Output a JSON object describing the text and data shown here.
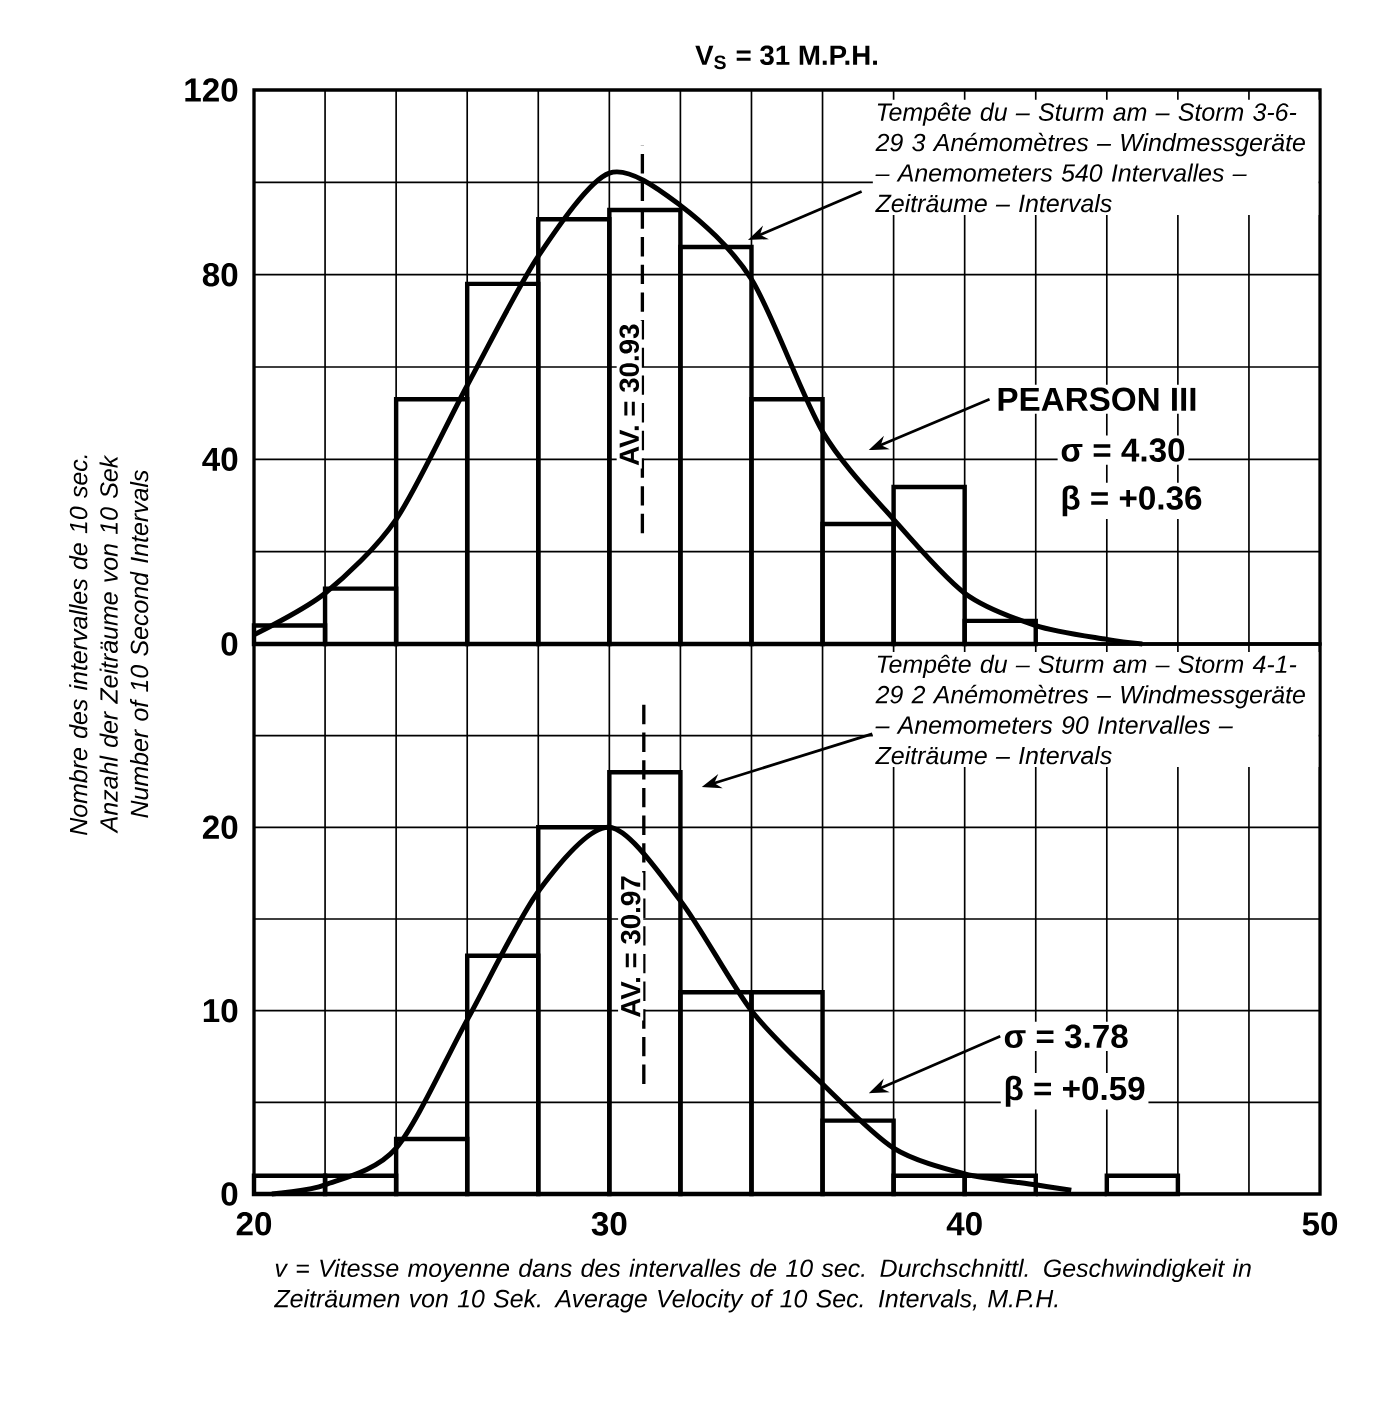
{
  "chart_data": [
    {
      "type": "histogram",
      "title": "V$_{S}$ = 31 M.P.H.",
      "ylabel": "Nombre des intervalles de 10 sec. Anzahl der Zeiträume von 10 Sek Number of 10 Second Intervals",
      "bins": [
        20,
        22,
        24,
        26,
        28,
        30,
        32,
        34,
        36,
        38,
        40,
        42
      ],
      "values": [
        4,
        12,
        53,
        78,
        92,
        94,
        86,
        53,
        26,
        34,
        5
      ],
      "color": "#000000",
      "series": [
        {
          "type": "line",
          "color": "#000000",
          "x": [
            20,
            22,
            24,
            26,
            28,
            30,
            32,
            34,
            36,
            38,
            40,
            42,
            44,
            45
          ],
          "values": [
            2,
            11,
            27,
            56,
            84,
            102,
            95,
            79,
            46,
            27,
            11,
            4,
            1,
            0
          ]
        }
      ],
      "xlim": [
        20,
        50
      ],
      "xticks": [
        20,
        {
          "value": 22,
          "label": null
        },
        {
          "value": 24,
          "label": null
        },
        {
          "value": 26,
          "label": null
        },
        {
          "value": 28,
          "label": null
        },
        30,
        {
          "value": 32,
          "label": null
        },
        {
          "value": 34,
          "label": null
        },
        {
          "value": 36,
          "label": null
        },
        {
          "value": 38,
          "label": null
        },
        40,
        {
          "value": 42,
          "label": null
        },
        {
          "value": 44,
          "label": null
        },
        {
          "value": 46,
          "label": null
        },
        {
          "value": 48,
          "label": null
        },
        50
      ],
      "ylim": [
        0,
        120
      ],
      "yticks": [
        0,
        {
          "value": 20,
          "label": null
        },
        40,
        {
          "value": 60,
          "label": null
        },
        80,
        {
          "value": 100,
          "label": null
        },
        120
      ],
      "tick_labels": "y",
      "grid": true,
      "ref_lines": [
        {
          "axis": "x",
          "value": 30.93,
          "label": "AV. = 30.93",
          "line_style": "dashed"
        }
      ],
      "annotations": [
        "Tempête du – Sturm am – Storm 3-6-29 3 Anémomètres – Windmessgeräte – Anemometers 540 Intervalles – Zeiträume – Intervals",
        "PEARSON III",
        "σ = 4.30",
        "β = +0.36"
      ]
    },
    {
      "type": "histogram",
      "xlabel": "v = Vitesse moyenne dans des intervalles de 10 sec. Durchschnittl. Geschwindigkeit in Zeiträumen von 10 Sek. Average Velocity of 10 Sec. Intervals, M.P.H.",
      "bins": [
        20,
        22,
        24,
        26,
        28,
        30,
        32,
        34,
        36,
        38,
        40,
        42,
        44,
        46
      ],
      "values": [
        1,
        1,
        3,
        13,
        20,
        23,
        11,
        11,
        4,
        1,
        1,
        0,
        1
      ],
      "color": "#000000",
      "series": [
        {
          "type": "line",
          "color": "#000000",
          "x": [
            20.5,
            22,
            24,
            26,
            28,
            30,
            32,
            34,
            36,
            38,
            40,
            42,
            43
          ],
          "values": [
            0,
            0.5,
            2.5,
            9.5,
            16.5,
            20,
            16,
            10,
            6,
            2.5,
            1.1,
            0.5,
            0.2
          ]
        }
      ],
      "xlim": [
        20,
        50
      ],
      "xticks": [
        20,
        {
          "value": 22,
          "label": null
        },
        {
          "value": 24,
          "label": null
        },
        {
          "value": 26,
          "label": null
        },
        {
          "value": 28,
          "label": null
        },
        30,
        {
          "value": 32,
          "label": null
        },
        {
          "value": 34,
          "label": null
        },
        {
          "value": 36,
          "label": null
        },
        {
          "value": 38,
          "label": null
        },
        40,
        {
          "value": 42,
          "label": null
        },
        {
          "value": 44,
          "label": null
        },
        {
          "value": 46,
          "label": null
        },
        {
          "value": 48,
          "label": null
        },
        50
      ],
      "ylim": [
        0,
        30
      ],
      "yticks": [
        0,
        {
          "value": 5,
          "label": null
        },
        10,
        {
          "value": 15,
          "label": null
        },
        20,
        {
          "value": 25,
          "label": null
        }
      ],
      "grid": true,
      "ref_lines": [
        {
          "axis": "x",
          "value": 30.97,
          "label": "AV. = 30.97",
          "line_style": "dashed"
        }
      ],
      "annotations": [
        "Tempête du – Sturm am – Storm 4-1-29 2 Anémomètres – Windmessgeräte – Anemometers 90 Intervalles – Zeiträume – Intervals",
        "σ = 3.78",
        "β = +0.59"
      ]
    }
  ]
}
